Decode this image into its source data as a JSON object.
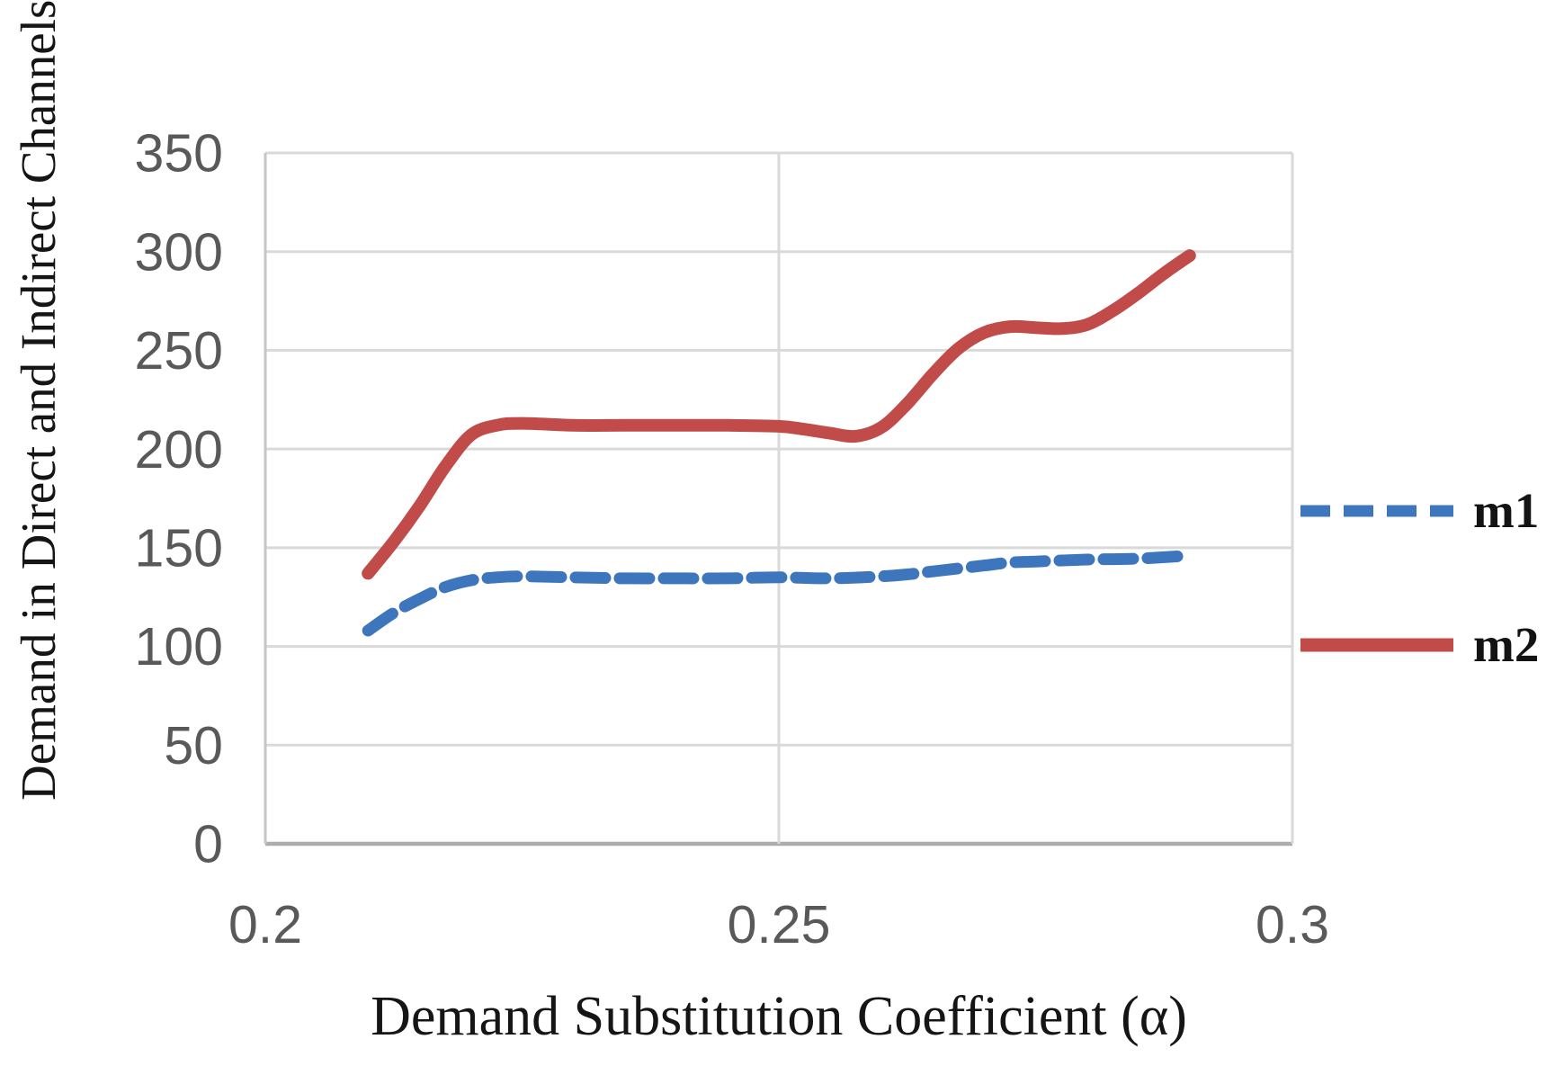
{
  "chart_data": {
    "type": "line",
    "title": "",
    "xlabel": "Demand Substitution Coefficient (α)",
    "ylabel": "Demand in Direct and Indirect Channels",
    "xlim": [
      0.2,
      0.3
    ],
    "ylim": [
      0,
      350
    ],
    "x_ticks": [
      "0.2",
      "0.25",
      "0.3"
    ],
    "x_tick_values": [
      0.2,
      0.25,
      0.3
    ],
    "y_ticks": [
      "0",
      "50",
      "100",
      "150",
      "200",
      "250",
      "300",
      "350"
    ],
    "y_tick_values": [
      0,
      50,
      100,
      150,
      200,
      250,
      300,
      350
    ],
    "grid": {
      "horizontal": true,
      "vertical": true
    },
    "legend_position": "right",
    "series": [
      {
        "name": "m1",
        "color": "#3e76bd",
        "line_style": "dashed",
        "x": [
          0.21,
          0.2125,
          0.215,
          0.2175,
          0.22,
          0.2225,
          0.225,
          0.23,
          0.235,
          0.24,
          0.245,
          0.25,
          0.255,
          0.26,
          0.2625,
          0.265,
          0.27,
          0.2725,
          0.275,
          0.28,
          0.285,
          0.29
        ],
        "y": [
          108,
          117,
          124,
          130,
          133.5,
          135,
          135.5,
          135,
          134.5,
          134.5,
          134.5,
          135,
          134.5,
          135.5,
          136.5,
          138,
          141,
          142.5,
          143,
          144,
          144.5,
          146
        ]
      },
      {
        "name": "m2",
        "color": "#c14b49",
        "line_style": "solid",
        "x": [
          0.21,
          0.2125,
          0.215,
          0.2175,
          0.22,
          0.2225,
          0.225,
          0.23,
          0.235,
          0.24,
          0.245,
          0.25,
          0.2525,
          0.255,
          0.2575,
          0.26,
          0.2625,
          0.265,
          0.2675,
          0.27,
          0.2725,
          0.275,
          0.2775,
          0.28,
          0.2825,
          0.285,
          0.2875,
          0.29
        ],
        "y": [
          137,
          153,
          171,
          191,
          207,
          212,
          213,
          212,
          212,
          212,
          212,
          211.5,
          210,
          208,
          206.5,
          211,
          223,
          238,
          251,
          259,
          262,
          261.5,
          261,
          263,
          270,
          279,
          289,
          298
        ]
      }
    ],
    "style": {
      "tick_label_color": "#595959",
      "gridline_color": "#d9d9d9",
      "plot_border_color": "#c6c6c6",
      "x_axis_line_color": "#adadad",
      "background_color": "#ffffff"
    }
  }
}
